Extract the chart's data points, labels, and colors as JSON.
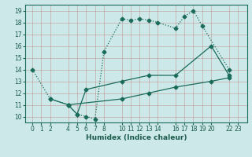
{
  "xlabel": "Humidex (Indice chaleur)",
  "bg_color": "#cce8e8",
  "line_color": "#1a6b5a",
  "xlim": [
    -0.8,
    24.0
  ],
  "ylim": [
    9.5,
    19.5
  ],
  "xticks": [
    0,
    1,
    2,
    4,
    5,
    6,
    7,
    8,
    10,
    11,
    12,
    13,
    14,
    16,
    17,
    18,
    19,
    20,
    22,
    23
  ],
  "yticks": [
    10,
    11,
    12,
    13,
    14,
    15,
    16,
    17,
    18,
    19
  ],
  "line1_x": [
    0,
    2,
    4,
    5,
    6,
    7,
    8,
    10,
    11,
    12,
    13,
    14,
    16,
    17,
    18,
    19,
    22
  ],
  "line1_y": [
    14,
    11.5,
    11,
    10.2,
    10.0,
    9.8,
    15.5,
    18.3,
    18.2,
    18.3,
    18.2,
    18.0,
    17.5,
    18.5,
    19.0,
    17.7,
    14.0
  ],
  "line2_x": [
    2,
    4,
    5,
    6,
    10,
    13,
    16,
    20,
    22
  ],
  "line2_y": [
    11.5,
    11,
    10.2,
    12.3,
    13.0,
    13.5,
    13.5,
    16.0,
    13.5
  ],
  "line3_x": [
    4,
    10,
    13,
    16,
    20,
    22
  ],
  "line3_y": [
    11.0,
    11.5,
    12.0,
    12.5,
    13.0,
    13.3
  ],
  "grid_color": "#c08080",
  "tick_label_color": "#1a5a4a",
  "tick_fontsize": 5.5,
  "xlabel_fontsize": 6.5,
  "lw": 0.9,
  "ms": 2.5
}
